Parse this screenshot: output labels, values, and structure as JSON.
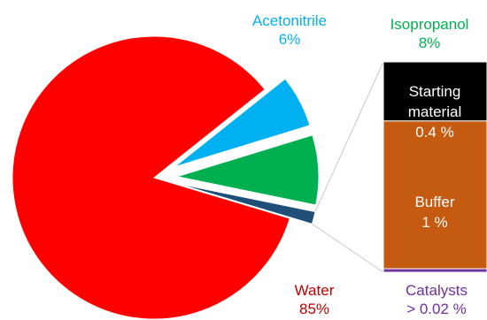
{
  "chart_data": {
    "type": "pie",
    "title": "",
    "slices": [
      {
        "label": "Water",
        "value_text": "85%",
        "value": 85,
        "color": "#ff0000"
      },
      {
        "label": "Acetonitrile",
        "value_text": "6%",
        "value": 6,
        "color": "#00b0f0"
      },
      {
        "label": "Isopropanol",
        "value_text": "8%",
        "value": 8,
        "color": "#00b050"
      },
      {
        "label": "",
        "value_text": "",
        "value": 1.42,
        "color": "#1f4e79"
      }
    ],
    "bar_of_pie": {
      "type": "stacked-bar",
      "segments": [
        {
          "label": "Starting material",
          "value_text": "0.4 %",
          "value": 0.4,
          "color": "#000000"
        },
        {
          "label": "Buffer",
          "value_text": "1 %",
          "value": 1,
          "color": "#c55a11"
        },
        {
          "label": "Catalysts",
          "value_text": "> 0.02 %",
          "value": 0.02,
          "color": "#7030a0"
        }
      ]
    },
    "label_colors": {
      "water": "#c00000",
      "acetonitrile": "#00b0f0",
      "isopropanol": "#00b050",
      "catalysts": "#7030a0"
    }
  }
}
